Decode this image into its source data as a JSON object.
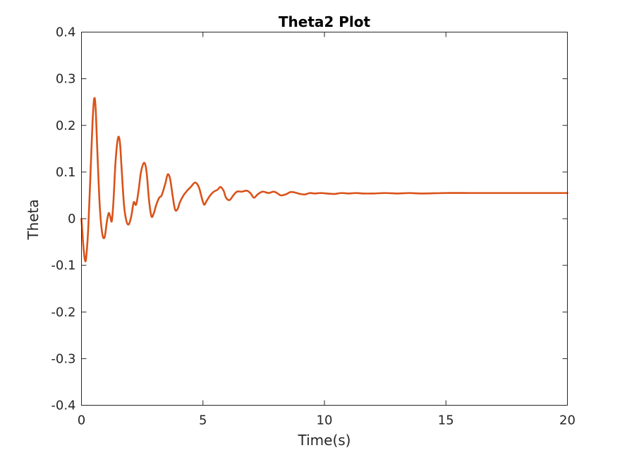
{
  "chart_data": {
    "type": "line",
    "title": "Theta2 Plot",
    "xlabel": "Time(s)",
    "ylabel": "Theta",
    "xlim": [
      0,
      20
    ],
    "ylim": [
      -0.4,
      0.4
    ],
    "x_ticks": [
      0,
      5,
      10,
      15,
      20
    ],
    "x_tick_labels": [
      "0",
      "5",
      "10",
      "15",
      "20"
    ],
    "y_ticks": [
      -0.4,
      -0.3,
      -0.2,
      -0.1,
      0,
      0.1,
      0.2,
      0.3,
      0.4
    ],
    "y_tick_labels": [
      "-0.4",
      "-0.3",
      "-0.2",
      "-0.1",
      "0",
      "0.1",
      "0.2",
      "0.3",
      "0.4"
    ],
    "grid": false,
    "box": true,
    "line_color": "#D95319",
    "series": [
      {
        "x": [
          0,
          0.08,
          0.15,
          0.2,
          0.28,
          0.36,
          0.45,
          0.52,
          0.58,
          0.65,
          0.75,
          0.85,
          0.95,
          1.05,
          1.12,
          1.18,
          1.25,
          1.32,
          1.4,
          1.5,
          1.58,
          1.65,
          1.75,
          1.85,
          1.95,
          2.05,
          2.15,
          2.25,
          2.35,
          2.45,
          2.58,
          2.68,
          2.78,
          2.88,
          2.98,
          3.08,
          3.2,
          3.3,
          3.45,
          3.55,
          3.65,
          3.75,
          3.85,
          3.95,
          4.05,
          4.2,
          4.35,
          4.5,
          4.65,
          4.75,
          4.85,
          4.95,
          5.05,
          5.15,
          5.3,
          5.45,
          5.6,
          5.72,
          5.85,
          5.95,
          6.1,
          6.25,
          6.4,
          6.6,
          6.8,
          6.95,
          7.1,
          7.25,
          7.45,
          7.7,
          7.9,
          8.05,
          8.2,
          8.4,
          8.6,
          8.8,
          9.0,
          9.2,
          9.4,
          9.6,
          9.85,
          10.1,
          10.4,
          10.7,
          11.0,
          11.3,
          11.6,
          12.0,
          12.5,
          13.0,
          13.5,
          14.0,
          15.0,
          16.0,
          17.0,
          18.0,
          19.0,
          20.0
        ],
        "values": [
          0,
          -0.06,
          -0.09,
          -0.08,
          -0.02,
          0.08,
          0.2,
          0.256,
          0.24,
          0.15,
          0.03,
          -0.03,
          -0.04,
          -0.005,
          0.012,
          0.005,
          -0.005,
          0.04,
          0.12,
          0.172,
          0.165,
          0.11,
          0.03,
          -0.005,
          -0.012,
          0.005,
          0.035,
          0.03,
          0.06,
          0.1,
          0.12,
          0.1,
          0.04,
          0.005,
          0.012,
          0.03,
          0.045,
          0.05,
          0.075,
          0.095,
          0.085,
          0.05,
          0.02,
          0.02,
          0.035,
          0.05,
          0.06,
          0.068,
          0.077,
          0.075,
          0.065,
          0.045,
          0.03,
          0.038,
          0.05,
          0.058,
          0.062,
          0.068,
          0.06,
          0.045,
          0.04,
          0.05,
          0.058,
          0.058,
          0.06,
          0.055,
          0.045,
          0.052,
          0.058,
          0.055,
          0.058,
          0.055,
          0.05,
          0.052,
          0.057,
          0.056,
          0.053,
          0.052,
          0.055,
          0.054,
          0.055,
          0.054,
          0.053,
          0.055,
          0.054,
          0.055,
          0.054,
          0.054,
          0.055,
          0.054,
          0.055,
          0.054,
          0.055,
          0.055,
          0.055,
          0.055,
          0.055,
          0.055
        ]
      }
    ]
  }
}
